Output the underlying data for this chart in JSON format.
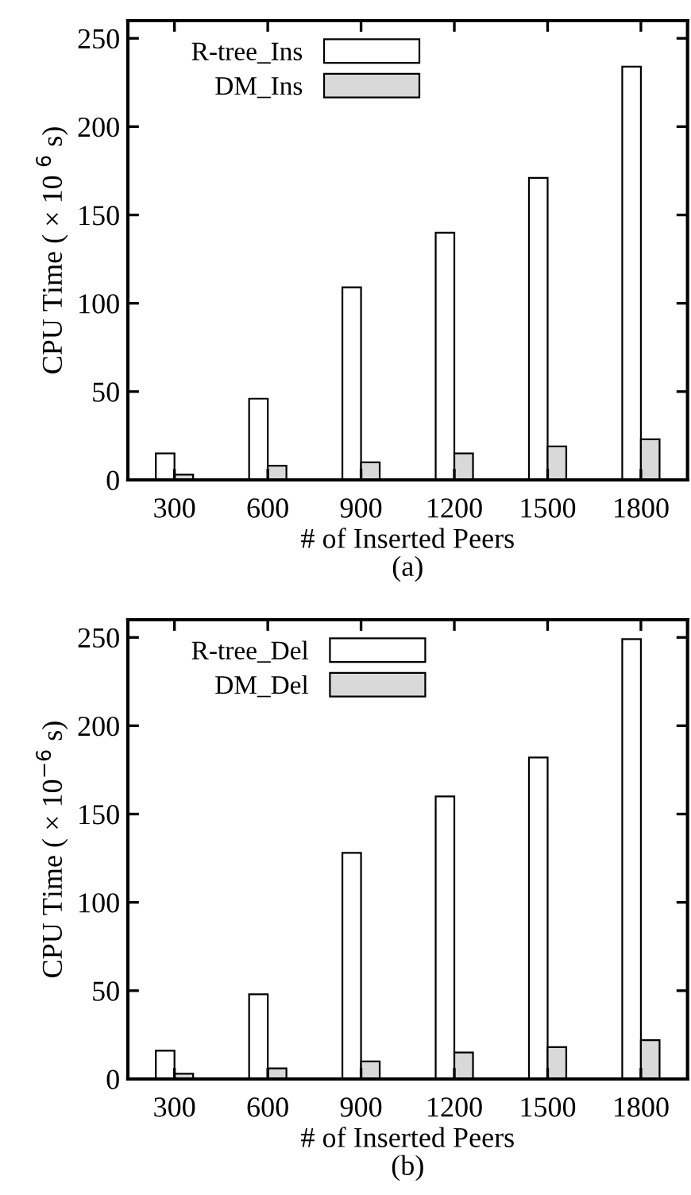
{
  "chart_data": [
    {
      "type": "bar",
      "categories": [
        "300",
        "600",
        "900",
        "1200",
        "1500",
        "1800"
      ],
      "xlabel": "# of Inserted Peers",
      "ylabel": "CPU Time ( × 10 $^{6}$ s)",
      "annotations": [
        "(a)"
      ],
      "ylim": [
        0,
        260
      ],
      "yticks": [
        0,
        50,
        100,
        150,
        200,
        250
      ],
      "legend": "top left",
      "grid": false,
      "series": [
        {
          "name": "R-tree_Ins",
          "color": "#ffffff",
          "values": [
            15,
            46,
            109,
            140,
            171,
            234
          ]
        },
        {
          "name": "DM_Ins",
          "color": "#d9d9d9",
          "values": [
            3,
            8,
            10,
            15,
            19,
            23
          ]
        }
      ]
    },
    {
      "type": "bar",
      "categories": [
        "300",
        "600",
        "900",
        "1200",
        "1500",
        "1800"
      ],
      "xlabel": "# of Inserted Peers",
      "ylabel": "CPU Time ( × 10$^{−6}$ s)",
      "annotations": [
        "(b)"
      ],
      "ylim": [
        0,
        260
      ],
      "yticks": [
        0,
        50,
        100,
        150,
        200,
        250
      ],
      "legend": "top left",
      "grid": false,
      "series": [
        {
          "name": "R-tree_Del",
          "color": "#ffffff",
          "values": [
            16,
            48,
            128,
            160,
            182,
            249
          ]
        },
        {
          "name": "DM_Del",
          "color": "#d9d9d9",
          "values": [
            3,
            6,
            10,
            15,
            18,
            22
          ]
        }
      ]
    }
  ]
}
